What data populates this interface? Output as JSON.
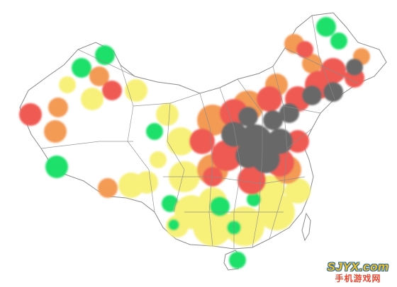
{
  "map": {
    "colors": {
      "background": "#ffffff",
      "border": "#7a7a7a",
      "green": "#1fe06b",
      "yellow": "#f7f17a",
      "orange": "#f39a55",
      "red": "#ef5a52",
      "gray": "#676767"
    }
  },
  "watermark": {
    "site": "SJYX.com",
    "name": "手机游戏网"
  }
}
